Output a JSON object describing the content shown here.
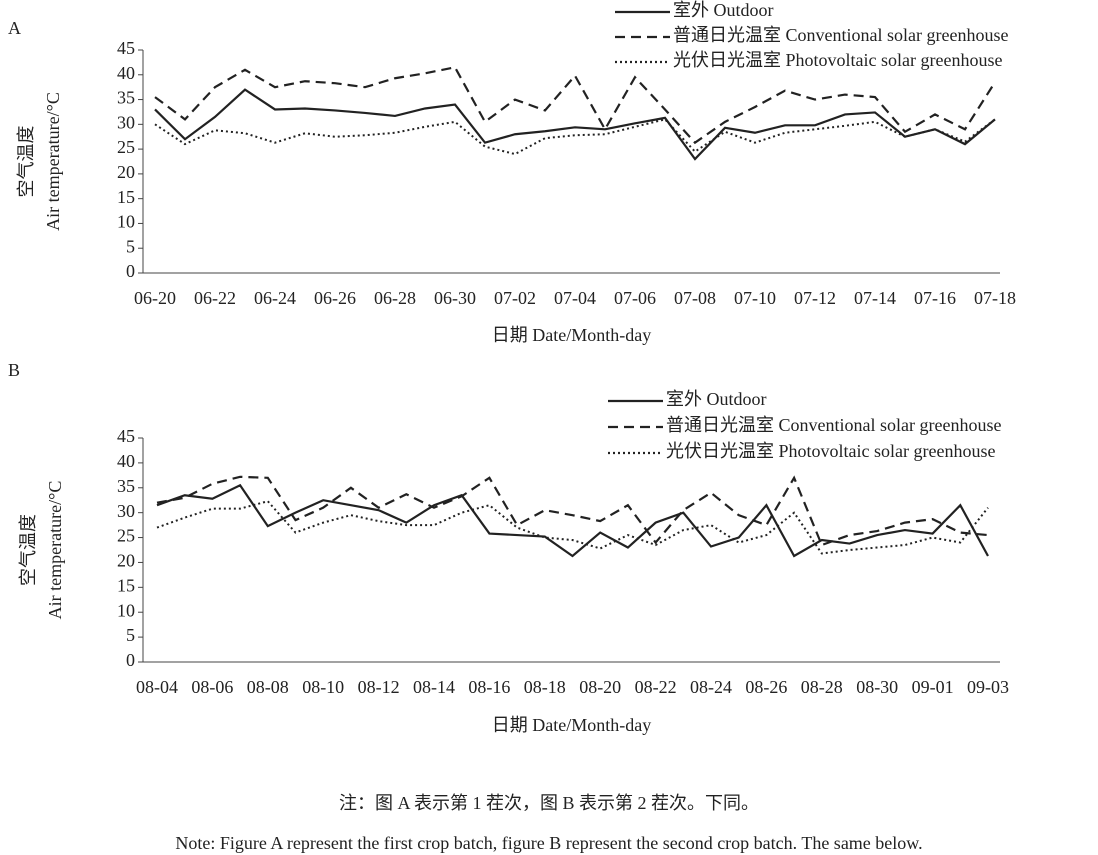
{
  "chart_data": [
    {
      "type": "line",
      "panel": "A",
      "ylabel": [
        "空气温度",
        "Air temperature/°C"
      ],
      "xlabel": "日期 Date/Month-day",
      "categories": [
        "06-20",
        null,
        "06-22",
        null,
        "06-24",
        null,
        "06-26",
        null,
        "06-28",
        null,
        "06-30",
        null,
        "07-02",
        null,
        "07-04",
        null,
        "07-06",
        null,
        "07-08",
        null,
        "07-10",
        null,
        "07-12",
        null,
        "07-14",
        null,
        "07-16",
        null,
        "07-18"
      ],
      "ylim": [
        0,
        45
      ],
      "yticks": [
        0,
        5,
        10,
        15,
        20,
        25,
        30,
        35,
        40,
        45
      ],
      "series": [
        {
          "name": "室外 Outdoor",
          "color": "#222222",
          "style": "solid",
          "values": [
            33,
            27,
            31.5,
            37,
            33,
            33.2,
            32.8,
            32.3,
            31.7,
            33.2,
            34,
            26.3,
            28,
            28.6,
            29.4,
            29,
            30.2,
            31.3,
            23,
            29.3,
            28.3,
            29.8,
            29.8,
            32,
            32.4,
            27.5,
            29,
            26,
            31
          ]
        },
        {
          "name": "普通日光温室 Conventional solar greenhouse",
          "color": "#222222",
          "style": "dashed",
          "values": [
            35.5,
            31,
            37.5,
            41,
            37.5,
            38.7,
            38.3,
            37.5,
            39.3,
            40.3,
            41.5,
            30.5,
            35,
            32.8,
            39.8,
            29,
            39.5,
            33,
            26.3,
            30.5,
            33.5,
            36.8,
            35,
            36,
            35.5,
            28.5,
            32,
            29,
            38.5
          ]
        },
        {
          "name": "光伏日光温室 Photovoltaic solar greenhouse",
          "color": "#222222",
          "style": "dotted",
          "values": [
            30,
            26,
            28.8,
            28.2,
            26.3,
            28.2,
            27.5,
            27.8,
            28.3,
            29.5,
            30.5,
            25.5,
            24,
            27.2,
            27.8,
            28,
            29.5,
            31,
            24.5,
            28.5,
            26.3,
            28.3,
            29,
            29.7,
            30.5,
            27.5,
            29,
            26.5,
            31
          ]
        }
      ]
    },
    {
      "type": "line",
      "panel": "B",
      "ylabel": [
        "空气温度",
        "Air temperature/°C"
      ],
      "xlabel": "日期 Date/Month-day",
      "categories": [
        "08-04",
        null,
        "08-06",
        null,
        "08-08",
        null,
        "08-10",
        null,
        "08-12",
        null,
        "08-14",
        null,
        "08-16",
        null,
        "08-18",
        null,
        "08-20",
        null,
        "08-22",
        null,
        "08-24",
        null,
        "08-26",
        null,
        "08-28",
        null,
        "08-30",
        null,
        "09-01",
        null,
        "09-03"
      ],
      "ylim": [
        0,
        45
      ],
      "yticks": [
        0,
        5,
        10,
        15,
        20,
        25,
        30,
        35,
        40,
        45
      ],
      "series": [
        {
          "name": "室外 Outdoor",
          "color": "#222222",
          "style": "solid",
          "values": [
            31.5,
            33.5,
            32.8,
            35.5,
            27.3,
            30,
            32.5,
            31.5,
            30.5,
            28,
            31.5,
            33.5,
            25.8,
            25.5,
            25.2,
            21.3,
            26,
            23,
            28,
            30,
            23.2,
            25,
            31.5,
            21.3,
            24.5,
            23.8,
            25.5,
            26.5,
            25.8,
            31.5,
            21.3
          ]
        },
        {
          "name": "普通日光温室 Conventional solar greenhouse",
          "color": "#222222",
          "style": "dashed",
          "values": [
            32,
            33,
            35.8,
            37.2,
            37,
            28.5,
            31,
            35,
            31,
            33.7,
            31,
            33.3,
            37,
            27.5,
            30.5,
            29.5,
            28.3,
            31.5,
            24,
            30.5,
            34,
            29.5,
            27.5,
            37,
            23.5,
            25.5,
            26.3,
            28,
            28.7,
            26,
            25.5
          ]
        },
        {
          "name": "光伏日光温室 Photovoltaic solar greenhouse",
          "color": "#222222",
          "style": "dotted",
          "values": [
            27,
            29,
            30.8,
            30.8,
            32.3,
            26,
            28,
            29.5,
            28.3,
            27.5,
            27.5,
            30,
            31.5,
            27,
            25,
            24.5,
            22.8,
            25.5,
            23.5,
            26.5,
            27.5,
            24,
            25.5,
            30,
            21.8,
            22.5,
            23,
            23.5,
            25,
            24,
            31
          ]
        }
      ]
    }
  ],
  "notes": [
    "注：图 A 表示第 1 茬次，图 B 表示第 2 茬次。下同。",
    "Note: Figure A represent the first crop batch, figure B represent the second crop batch. The same below."
  ]
}
